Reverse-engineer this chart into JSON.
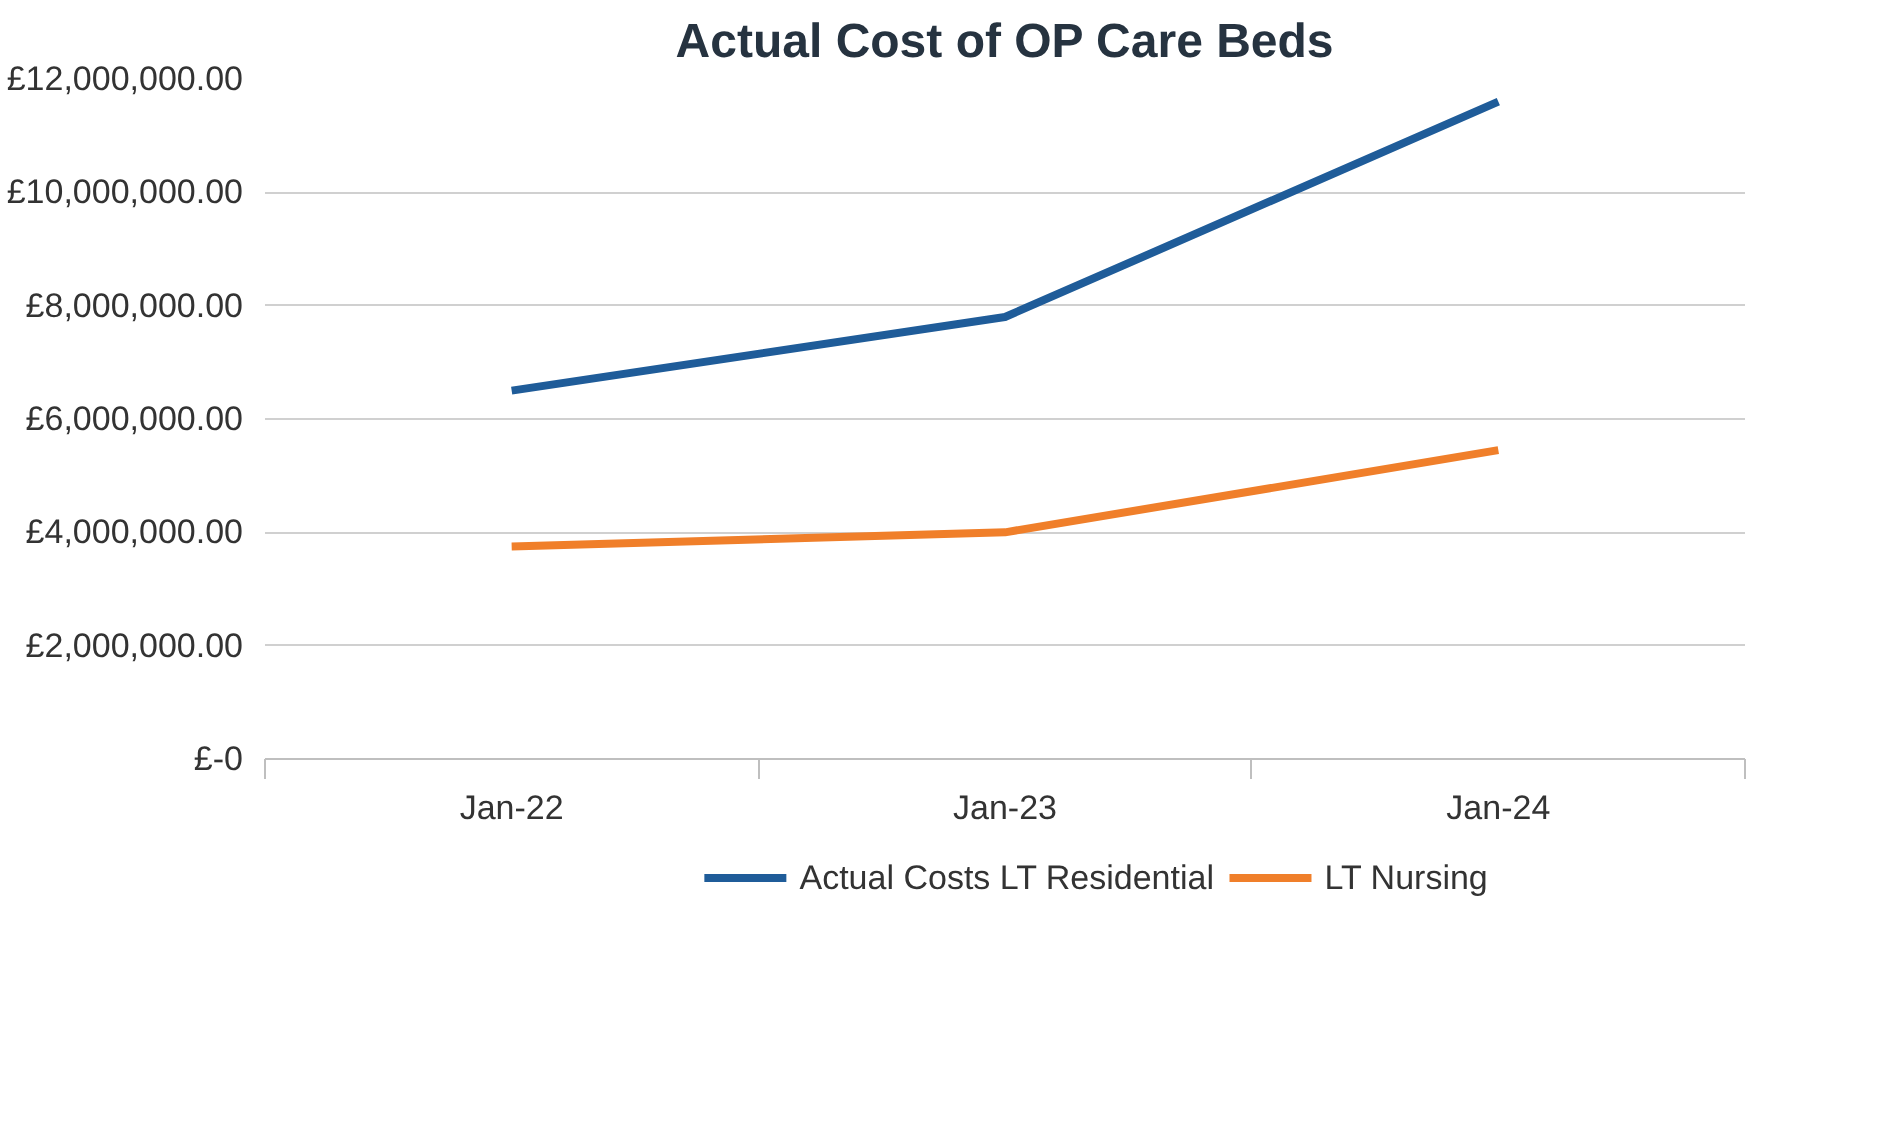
{
  "chart_data": {
    "type": "line",
    "title": "Actual Cost of OP Care Beds",
    "categories": [
      "Jan-22",
      "Jan-23",
      "Jan-24"
    ],
    "series": [
      {
        "name": "Actual Costs LT Residential",
        "color": "#1f5c99",
        "values": [
          6500000,
          7800000,
          11600000
        ]
      },
      {
        "name": "LT Nursing",
        "color": "#f07f2a",
        "values": [
          3750000,
          4000000,
          5450000
        ]
      }
    ],
    "ylim": [
      0,
      12000000
    ],
    "yticks": [
      {
        "value": 0,
        "label": "£-0"
      },
      {
        "value": 2000000,
        "label": "£2,000,000.00"
      },
      {
        "value": 4000000,
        "label": "£4,000,000.00"
      },
      {
        "value": 6000000,
        "label": "£6,000,000.00"
      },
      {
        "value": 8000000,
        "label": "£8,000,000.00"
      },
      {
        "value": 10000000,
        "label": "£10,000,000.00"
      },
      {
        "value": 12000000,
        "label": "£12,000,000.00"
      }
    ],
    "grid": "y",
    "legend": "bottom",
    "marker": "none",
    "line_style": "solid"
  }
}
